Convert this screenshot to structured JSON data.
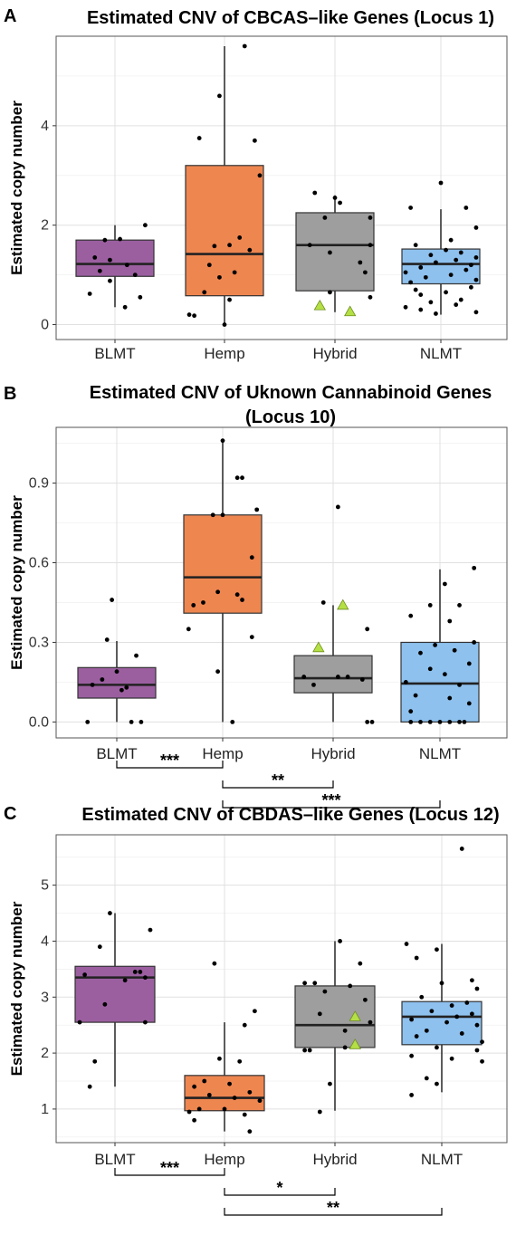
{
  "chart_data": [
    {
      "panel": "A",
      "type": "box",
      "title": "Estimated CNV of CBCAS–like Genes (Locus 1)",
      "ylabel": "Estimated copy number",
      "xlabel": "",
      "categories": [
        "BLMT",
        "Hemp",
        "Hybrid",
        "NLMT"
      ],
      "ylim": [
        -0.3,
        5.8
      ],
      "yticks": [
        0,
        2,
        4
      ],
      "grid": true,
      "colors": [
        "#9b5fa0",
        "#ee8650",
        "#9e9e9e",
        "#8ec1ee"
      ],
      "boxes": [
        {
          "q1": 0.97,
          "median": 1.22,
          "q3": 1.7,
          "whisker_low": 0.35,
          "whisker_high": 2.0
        },
        {
          "q1": 0.58,
          "median": 1.42,
          "q3": 3.2,
          "whisker_low": 0.0,
          "whisker_high": 5.6
        },
        {
          "q1": 0.68,
          "median": 1.6,
          "q3": 2.25,
          "whisker_low": 0.25,
          "whisker_high": 2.6
        },
        {
          "q1": 0.82,
          "median": 1.22,
          "q3": 1.52,
          "whisker_low": 0.2,
          "whisker_high": 2.32
        }
      ],
      "points": [
        [
          [
            -0.1,
            1.7
          ],
          [
            0.05,
            1.72
          ],
          [
            0.3,
            2.0
          ],
          [
            -0.2,
            1.35
          ],
          [
            -0.05,
            1.3
          ],
          [
            0.12,
            1.2
          ],
          [
            -0.15,
            1.08
          ],
          [
            0.2,
            1.0
          ],
          [
            -0.05,
            0.88
          ],
          [
            -0.25,
            0.62
          ],
          [
            0.25,
            0.55
          ],
          [
            0.1,
            0.35
          ]
        ],
        [
          [
            0.2,
            5.6
          ],
          [
            -0.05,
            4.6
          ],
          [
            0.3,
            3.7
          ],
          [
            -0.25,
            3.75
          ],
          [
            0.35,
            3.0
          ],
          [
            0.15,
            1.75
          ],
          [
            0.05,
            1.6
          ],
          [
            -0.1,
            1.58
          ],
          [
            0.25,
            1.5
          ],
          [
            -0.15,
            1.2
          ],
          [
            0.1,
            1.05
          ],
          [
            -0.05,
            0.95
          ],
          [
            -0.2,
            0.65
          ],
          [
            0.05,
            0.5
          ],
          [
            -0.35,
            0.2
          ],
          [
            -0.3,
            0.18
          ],
          [
            0.0,
            0.0
          ]
        ],
        [
          [
            -0.2,
            2.65
          ],
          [
            0.0,
            2.55
          ],
          [
            0.05,
            2.45
          ],
          [
            -0.1,
            2.15
          ],
          [
            0.35,
            2.15
          ],
          [
            -0.25,
            1.6
          ],
          [
            0.35,
            1.6
          ],
          [
            -0.05,
            1.45
          ],
          [
            0.25,
            1.25
          ],
          [
            0.3,
            1.05
          ],
          [
            -0.05,
            0.65
          ],
          [
            0.35,
            0.55
          ]
        ],
        [
          [
            0.0,
            2.85
          ],
          [
            -0.3,
            2.35
          ],
          [
            0.25,
            2.35
          ],
          [
            0.35,
            1.95
          ],
          [
            0.1,
            1.7
          ],
          [
            -0.25,
            1.6
          ],
          [
            0.05,
            1.5
          ],
          [
            0.2,
            1.45
          ],
          [
            -0.1,
            1.4
          ],
          [
            0.35,
            1.35
          ],
          [
            0.15,
            1.3
          ],
          [
            -0.05,
            1.25
          ],
          [
            0.3,
            1.2
          ],
          [
            -0.2,
            1.15
          ],
          [
            0.25,
            1.1
          ],
          [
            -0.35,
            1.05
          ],
          [
            0.1,
            1.0
          ],
          [
            -0.15,
            0.95
          ],
          [
            0.35,
            0.9
          ],
          [
            -0.3,
            0.85
          ],
          [
            0.3,
            0.75
          ],
          [
            -0.25,
            0.7
          ],
          [
            0.05,
            0.65
          ],
          [
            -0.2,
            0.6
          ],
          [
            0.2,
            0.5
          ],
          [
            -0.1,
            0.45
          ],
          [
            0.15,
            0.4
          ],
          [
            -0.35,
            0.35
          ],
          [
            -0.2,
            0.3
          ],
          [
            0.35,
            0.25
          ],
          [
            -0.05,
            0.22
          ]
        ]
      ],
      "triangles": [
        [
          2,
          -0.15,
          0.38
        ],
        [
          2,
          0.15,
          0.26
        ]
      ],
      "brackets": []
    },
    {
      "panel": "B",
      "type": "box",
      "title": "Estimated CNV of Uknown Cannabinoid Genes",
      "title_line2": "(Locus 10)",
      "ylabel": "Estimated copy number",
      "xlabel": "",
      "categories": [
        "BLMT",
        "Hemp",
        "Hybrid",
        "NLMT"
      ],
      "ylim": [
        -0.06,
        1.11
      ],
      "yticks": [
        0.0,
        0.3,
        0.6,
        0.9
      ],
      "ytick_labels": [
        "0.0",
        "0.3",
        "0.6",
        "0.9"
      ],
      "grid": true,
      "colors": [
        "#9b5fa0",
        "#ee8650",
        "#9e9e9e",
        "#8ec1ee"
      ],
      "boxes": [
        {
          "q1": 0.09,
          "median": 0.14,
          "q3": 0.205,
          "whisker_low": 0.0,
          "whisker_high": 0.305
        },
        {
          "q1": 0.41,
          "median": 0.545,
          "q3": 0.78,
          "whisker_low": 0.0,
          "whisker_high": 1.06
        },
        {
          "q1": 0.11,
          "median": 0.165,
          "q3": 0.25,
          "whisker_low": 0.0,
          "whisker_high": 0.44
        },
        {
          "q1": 0.0,
          "median": 0.145,
          "q3": 0.3,
          "whisker_low": 0.0,
          "whisker_high": 0.575
        }
      ],
      "points": [
        [
          [
            -0.05,
            0.46
          ],
          [
            0.2,
            0.25
          ],
          [
            -0.1,
            0.31
          ],
          [
            0.0,
            0.19
          ],
          [
            -0.15,
            0.16
          ],
          [
            0.05,
            0.12
          ],
          [
            -0.25,
            0.14
          ],
          [
            0.1,
            0.13
          ],
          [
            -0.3,
            0.0
          ],
          [
            0.15,
            0.0
          ],
          [
            0.25,
            0.0
          ]
        ],
        [
          [
            0.0,
            1.06
          ],
          [
            0.15,
            0.92
          ],
          [
            0.2,
            0.92
          ],
          [
            0.35,
            0.8
          ],
          [
            -0.1,
            0.78
          ],
          [
            0.0,
            0.78
          ],
          [
            0.3,
            0.62
          ],
          [
            -0.05,
            0.49
          ],
          [
            0.15,
            0.48
          ],
          [
            0.2,
            0.46
          ],
          [
            -0.2,
            0.45
          ],
          [
            -0.3,
            0.44
          ],
          [
            -0.35,
            0.35
          ],
          [
            0.3,
            0.32
          ],
          [
            -0.05,
            0.19
          ],
          [
            0.1,
            0.0
          ]
        ],
        [
          [
            0.05,
            0.81
          ],
          [
            -0.1,
            0.45
          ],
          [
            0.1,
            0.44
          ],
          [
            0.35,
            0.35
          ],
          [
            -0.3,
            0.17
          ],
          [
            0.15,
            0.17
          ],
          [
            0.3,
            0.16
          ],
          [
            0.05,
            0.17
          ],
          [
            -0.2,
            0.14
          ],
          [
            0.4,
            0.0
          ],
          [
            0.35,
            0.0
          ]
        ],
        [
          [
            0.35,
            0.58
          ],
          [
            0.05,
            0.52
          ],
          [
            -0.1,
            0.44
          ],
          [
            0.2,
            0.44
          ],
          [
            0.1,
            0.38
          ],
          [
            -0.3,
            0.4
          ],
          [
            0.35,
            0.3
          ],
          [
            -0.05,
            0.29
          ],
          [
            0.15,
            0.27
          ],
          [
            -0.2,
            0.26
          ],
          [
            0.3,
            0.22
          ],
          [
            -0.1,
            0.2
          ],
          [
            0.05,
            0.18
          ],
          [
            -0.35,
            0.15
          ],
          [
            0.2,
            0.14
          ],
          [
            -0.25,
            0.1
          ],
          [
            0.1,
            0.09
          ],
          [
            0.3,
            0.07
          ],
          [
            -0.3,
            0.04
          ],
          [
            -0.1,
            0.0
          ],
          [
            0.0,
            0.0
          ],
          [
            0.1,
            0.0
          ],
          [
            -0.2,
            0.0
          ],
          [
            0.2,
            0.0
          ],
          [
            0.25,
            0.0
          ],
          [
            -0.3,
            0.0
          ]
        ]
      ],
      "triangles": [
        [
          2,
          -0.15,
          0.28
        ],
        [
          2,
          0.1,
          0.44
        ]
      ],
      "brackets": [
        {
          "from": 0,
          "to": 1,
          "label": "***",
          "level": 0
        },
        {
          "from": 1,
          "to": 2,
          "label": "**",
          "level": 1
        },
        {
          "from": 1,
          "to": 3,
          "label": "***",
          "level": 2
        }
      ]
    },
    {
      "panel": "C",
      "type": "box",
      "title": "Estimated CNV of CBDAS–like Genes (Locus 12)",
      "ylabel": "Estimated copy number",
      "xlabel": "",
      "categories": [
        "BLMT",
        "Hemp",
        "Hybrid",
        "NLMT"
      ],
      "ylim": [
        0.4,
        5.9
      ],
      "yticks": [
        1,
        2,
        3,
        4,
        5
      ],
      "grid": true,
      "colors": [
        "#9b5fa0",
        "#ee8650",
        "#9e9e9e",
        "#8ec1ee"
      ],
      "boxes": [
        {
          "q1": 2.55,
          "median": 3.35,
          "q3": 3.55,
          "whisker_low": 1.4,
          "whisker_high": 4.5
        },
        {
          "q1": 0.97,
          "median": 1.2,
          "q3": 1.6,
          "whisker_low": 0.6,
          "whisker_high": 2.55
        },
        {
          "q1": 2.1,
          "median": 2.5,
          "q3": 3.2,
          "whisker_low": 0.97,
          "whisker_high": 4.0
        },
        {
          "q1": 2.15,
          "median": 2.65,
          "q3": 2.92,
          "whisker_low": 1.3,
          "whisker_high": 3.95
        }
      ],
      "points": [
        [
          [
            -0.05,
            4.5
          ],
          [
            0.35,
            4.2
          ],
          [
            -0.15,
            3.9
          ],
          [
            0.25,
            3.45
          ],
          [
            -0.3,
            3.4
          ],
          [
            0.2,
            3.45
          ],
          [
            0.3,
            3.35
          ],
          [
            0.1,
            3.3
          ],
          [
            -0.1,
            2.87
          ],
          [
            -0.35,
            2.55
          ],
          [
            0.3,
            2.55
          ],
          [
            -0.2,
            1.85
          ],
          [
            -0.25,
            1.4
          ]
        ],
        [
          [
            -0.1,
            3.6
          ],
          [
            0.2,
            2.5
          ],
          [
            0.3,
            2.75
          ],
          [
            -0.05,
            1.9
          ],
          [
            0.15,
            1.85
          ],
          [
            -0.2,
            1.5
          ],
          [
            0.05,
            1.45
          ],
          [
            -0.3,
            1.4
          ],
          [
            0.25,
            1.3
          ],
          [
            -0.15,
            1.25
          ],
          [
            0.1,
            1.2
          ],
          [
            0.35,
            1.15
          ],
          [
            -0.25,
            1.0
          ],
          [
            0.0,
            1.0
          ],
          [
            -0.35,
            0.95
          ],
          [
            0.2,
            0.9
          ],
          [
            -0.3,
            0.8
          ],
          [
            0.25,
            0.6
          ]
        ],
        [
          [
            0.05,
            4.0
          ],
          [
            0.25,
            3.6
          ],
          [
            -0.3,
            3.25
          ],
          [
            -0.2,
            3.25
          ],
          [
            0.15,
            3.2
          ],
          [
            -0.1,
            3.1
          ],
          [
            0.3,
            2.95
          ],
          [
            -0.15,
            2.7
          ],
          [
            0.35,
            2.55
          ],
          [
            0.1,
            2.4
          ],
          [
            -0.3,
            2.05
          ],
          [
            -0.25,
            2.05
          ],
          [
            0.1,
            2.1
          ],
          [
            -0.05,
            1.45
          ],
          [
            -0.15,
            0.95
          ]
        ],
        [
          [
            0.2,
            5.65
          ],
          [
            -0.35,
            3.95
          ],
          [
            -0.05,
            3.85
          ],
          [
            -0.25,
            3.7
          ],
          [
            0.3,
            3.3
          ],
          [
            0.0,
            3.25
          ],
          [
            0.35,
            3.15
          ],
          [
            -0.2,
            3.0
          ],
          [
            0.25,
            2.9
          ],
          [
            0.1,
            2.85
          ],
          [
            -0.1,
            2.75
          ],
          [
            0.3,
            2.7
          ],
          [
            0.15,
            2.65
          ],
          [
            -0.3,
            2.6
          ],
          [
            0.05,
            2.55
          ],
          [
            0.35,
            2.5
          ],
          [
            -0.15,
            2.4
          ],
          [
            0.2,
            2.35
          ],
          [
            -0.25,
            2.3
          ],
          [
            0.4,
            2.2
          ],
          [
            -0.05,
            2.1
          ],
          [
            0.35,
            2.05
          ],
          [
            -0.3,
            1.95
          ],
          [
            0.1,
            1.9
          ],
          [
            0.4,
            1.85
          ],
          [
            -0.15,
            1.55
          ],
          [
            -0.05,
            1.45
          ],
          [
            -0.3,
            1.25
          ]
        ]
      ],
      "triangles": [
        [
          2,
          0.2,
          2.65
        ],
        [
          2,
          0.2,
          2.15
        ]
      ],
      "brackets": [
        {
          "from": 0,
          "to": 1,
          "label": "***",
          "level": 0
        },
        {
          "from": 1,
          "to": 2,
          "label": "*",
          "level": 1
        },
        {
          "from": 1,
          "to": 3,
          "label": "**",
          "level": 2
        }
      ]
    }
  ]
}
